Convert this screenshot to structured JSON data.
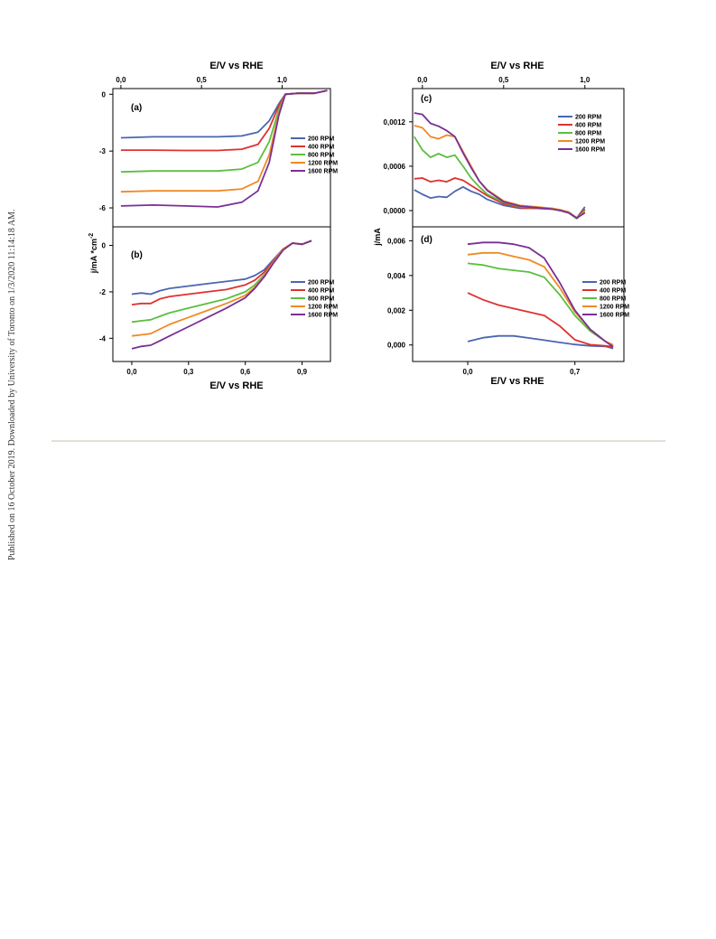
{
  "side_note": "Published on 16 October 2019. Downloaded by University of Toronto on 1/3/2020 11:14:18 AM.",
  "colors": {
    "200 RPM": "#4a66b0",
    "400 RPM": "#e03131",
    "800 RPM": "#5bbf3f",
    "1200 RPM": "#f08a24",
    "1600 RPM": "#7a2f96"
  },
  "chart_data": [
    {
      "panel": "(a)",
      "type": "line",
      "xlabel": "E/V vs RHE",
      "ylabel": "j/mA *cm-2",
      "x_ticks": [
        "0,0",
        "0,5",
        "1,0"
      ],
      "y_ticks": [
        "0",
        "-3",
        "-6"
      ],
      "xlim": [
        -0.05,
        1.3
      ],
      "ylim": [
        -7,
        0.3
      ],
      "legend": [
        "200 RPM",
        "400 RPM",
        "800 RPM",
        "1200 RPM",
        "1600 RPM"
      ],
      "series": [
        {
          "name": "200 RPM",
          "x": [
            0,
            0.2,
            0.4,
            0.6,
            0.75,
            0.85,
            0.92,
            0.98,
            1.02,
            1.1,
            1.2,
            1.28
          ],
          "y": [
            -2.3,
            -2.25,
            -2.25,
            -2.25,
            -2.2,
            -2.0,
            -1.4,
            -0.5,
            0,
            0.05,
            0.05,
            0.2
          ]
        },
        {
          "name": "400 RPM",
          "x": [
            0,
            0.2,
            0.4,
            0.6,
            0.75,
            0.85,
            0.92,
            0.98,
            1.02,
            1.1,
            1.2,
            1.28
          ],
          "y": [
            -2.95,
            -2.95,
            -2.97,
            -2.97,
            -2.9,
            -2.65,
            -1.8,
            -0.6,
            0,
            0.05,
            0.05,
            0.2
          ]
        },
        {
          "name": "800 RPM",
          "x": [
            0,
            0.2,
            0.4,
            0.6,
            0.75,
            0.85,
            0.92,
            0.98,
            1.02,
            1.1,
            1.2,
            1.28
          ],
          "y": [
            -4.1,
            -4.05,
            -4.05,
            -4.05,
            -3.95,
            -3.6,
            -2.5,
            -0.8,
            0,
            0.05,
            0.05,
            0.2
          ]
        },
        {
          "name": "1200 RPM",
          "x": [
            0,
            0.2,
            0.4,
            0.6,
            0.75,
            0.85,
            0.92,
            0.98,
            1.02,
            1.1,
            1.2,
            1.28
          ],
          "y": [
            -5.15,
            -5.1,
            -5.1,
            -5.1,
            -5.0,
            -4.6,
            -3.2,
            -1.0,
            0,
            0.05,
            0.05,
            0.2
          ]
        },
        {
          "name": "1600 RPM",
          "x": [
            0,
            0.2,
            0.4,
            0.6,
            0.75,
            0.85,
            0.92,
            0.98,
            1.02,
            1.1,
            1.2,
            1.28
          ],
          "y": [
            -5.9,
            -5.85,
            -5.9,
            -5.95,
            -5.7,
            -5.1,
            -3.6,
            -1.1,
            0,
            0.05,
            0.05,
            0.2
          ]
        }
      ]
    },
    {
      "panel": "(b)",
      "type": "line",
      "xlabel": "E/V vs RHE",
      "ylabel": "j/mA *cm-2",
      "x_ticks": [
        "0,0",
        "0,3",
        "0,6",
        "0,9"
      ],
      "y_ticks": [
        "0",
        "-2",
        "-4"
      ],
      "xlim": [
        -0.1,
        1.05
      ],
      "ylim": [
        -5,
        0.8
      ],
      "legend": [
        "200 RPM",
        "400 RPM",
        "800 RPM",
        "1200 RPM",
        "1600 RPM"
      ],
      "series": [
        {
          "name": "200 RPM",
          "x": [
            0,
            0.05,
            0.1,
            0.15,
            0.2,
            0.3,
            0.4,
            0.5,
            0.6,
            0.65,
            0.7,
            0.75,
            0.8,
            0.85,
            0.9,
            0.95
          ],
          "y": [
            -2.1,
            -2.05,
            -2.1,
            -1.95,
            -1.85,
            -1.75,
            -1.65,
            -1.55,
            -1.45,
            -1.3,
            -1.05,
            -0.6,
            -0.15,
            0.1,
            0.05,
            0.2
          ]
        },
        {
          "name": "400 RPM",
          "x": [
            0,
            0.05,
            0.1,
            0.15,
            0.2,
            0.3,
            0.4,
            0.5,
            0.6,
            0.65,
            0.7,
            0.75,
            0.8,
            0.85,
            0.9,
            0.95
          ],
          "y": [
            -2.55,
            -2.5,
            -2.5,
            -2.3,
            -2.2,
            -2.1,
            -2.0,
            -1.9,
            -1.7,
            -1.5,
            -1.15,
            -0.65,
            -0.15,
            0.1,
            0.05,
            0.2
          ]
        },
        {
          "name": "800 RPM",
          "x": [
            0,
            0.05,
            0.1,
            0.15,
            0.2,
            0.3,
            0.4,
            0.5,
            0.6,
            0.65,
            0.7,
            0.75,
            0.8,
            0.85,
            0.9,
            0.95
          ],
          "y": [
            -3.3,
            -3.25,
            -3.2,
            -3.05,
            -2.9,
            -2.7,
            -2.5,
            -2.3,
            -2.0,
            -1.7,
            -1.25,
            -0.7,
            -0.15,
            0.1,
            0.05,
            0.2
          ]
        },
        {
          "name": "1200 RPM",
          "x": [
            0,
            0.05,
            0.1,
            0.15,
            0.2,
            0.3,
            0.4,
            0.5,
            0.6,
            0.65,
            0.7,
            0.75,
            0.8,
            0.85,
            0.9,
            0.95
          ],
          "y": [
            -3.9,
            -3.85,
            -3.8,
            -3.6,
            -3.4,
            -3.1,
            -2.8,
            -2.5,
            -2.15,
            -1.8,
            -1.3,
            -0.7,
            -0.15,
            0.1,
            0.05,
            0.2
          ]
        },
        {
          "name": "1600 RPM",
          "x": [
            0,
            0.05,
            0.1,
            0.15,
            0.2,
            0.3,
            0.4,
            0.5,
            0.6,
            0.65,
            0.7,
            0.75,
            0.8,
            0.85,
            0.9,
            0.95
          ],
          "y": [
            -4.45,
            -4.35,
            -4.3,
            -4.1,
            -3.9,
            -3.5,
            -3.1,
            -2.7,
            -2.25,
            -1.85,
            -1.35,
            -0.75,
            -0.2,
            0.1,
            0.05,
            0.2
          ]
        }
      ]
    },
    {
      "panel": "(c)",
      "type": "line",
      "xlabel": "E/V vs RHE",
      "ylabel": "",
      "x_ticks": [
        "0,0",
        "0,5",
        "1,0"
      ],
      "y_ticks": [
        "0,0012",
        "0,0006",
        "0,0000"
      ],
      "xlim": [
        -0.06,
        1.24
      ],
      "ylim": [
        -0.00022,
        0.00165
      ],
      "legend": [
        "200 RPM",
        "400 RPM",
        "800 RPM",
        "1200 RPM",
        "1600 RPM"
      ],
      "series": [
        {
          "name": "200 RPM",
          "x": [
            -0.05,
            0.0,
            0.05,
            0.1,
            0.15,
            0.2,
            0.25,
            0.3,
            0.35,
            0.4,
            0.5,
            0.6,
            0.7,
            0.8,
            0.85,
            0.9,
            0.95,
            1.0
          ],
          "y": [
            0.00028,
            0.00022,
            0.00017,
            0.00019,
            0.00018,
            0.00026,
            0.00032,
            0.00026,
            0.00022,
            0.00015,
            7e-05,
            3e-05,
            3e-05,
            2e-05,
            1e-05,
            -2e-05,
            -0.0001,
            5e-05
          ]
        },
        {
          "name": "400 RPM",
          "x": [
            -0.05,
            0.0,
            0.05,
            0.1,
            0.15,
            0.2,
            0.25,
            0.3,
            0.35,
            0.4,
            0.5,
            0.6,
            0.7,
            0.8,
            0.85,
            0.9,
            0.95,
            1.0
          ],
          "y": [
            0.00043,
            0.00044,
            0.00039,
            0.00041,
            0.00039,
            0.00044,
            0.00041,
            0.00034,
            0.00027,
            0.0002,
            9e-05,
            4e-05,
            3e-05,
            2e-05,
            0.0,
            -3e-05,
            -0.0001,
            2e-05
          ]
        },
        {
          "name": "800 RPM",
          "x": [
            -0.05,
            0.0,
            0.05,
            0.1,
            0.15,
            0.2,
            0.25,
            0.3,
            0.35,
            0.4,
            0.5,
            0.6,
            0.7,
            0.8,
            0.85,
            0.9,
            0.95,
            1.0
          ],
          "y": [
            0.001,
            0.00082,
            0.00072,
            0.00077,
            0.00072,
            0.00075,
            0.0006,
            0.00044,
            0.00032,
            0.00022,
            0.00011,
            5e-05,
            4e-05,
            2e-05,
            0.0,
            -3e-05,
            -0.00011,
            0.0
          ]
        },
        {
          "name": "1200 RPM",
          "x": [
            -0.05,
            0.0,
            0.05,
            0.1,
            0.15,
            0.2,
            0.25,
            0.3,
            0.35,
            0.4,
            0.5,
            0.6,
            0.7,
            0.8,
            0.85,
            0.9,
            0.95,
            1.0
          ],
          "y": [
            0.00115,
            0.00112,
            0.001,
            0.00097,
            0.00102,
            0.001,
            0.0008,
            0.0006,
            0.0004,
            0.00028,
            0.00013,
            7e-05,
            5e-05,
            3e-05,
            1e-05,
            -2e-05,
            -0.0001,
            -2e-05
          ]
        },
        {
          "name": "1600 RPM",
          "x": [
            -0.05,
            0.0,
            0.05,
            0.1,
            0.15,
            0.2,
            0.25,
            0.3,
            0.35,
            0.4,
            0.5,
            0.6,
            0.7,
            0.8,
            0.85,
            0.9,
            0.95,
            1.0
          ],
          "y": [
            0.00132,
            0.0013,
            0.00118,
            0.00114,
            0.00108,
            0.001,
            0.00078,
            0.00058,
            0.0004,
            0.00027,
            0.00012,
            6e-05,
            4e-05,
            2e-05,
            0.0,
            -3e-05,
            -0.0001,
            -3e-05
          ]
        }
      ]
    },
    {
      "panel": "(d)",
      "type": "line",
      "xlabel": "E/V vs RHE",
      "ylabel": "j/mA",
      "x_ticks": [
        "0,0",
        "0,7"
      ],
      "y_ticks": [
        "0,006",
        "0,004",
        "0,002",
        "0,000"
      ],
      "xlim": [
        -0.36,
        1.02
      ],
      "ylim": [
        -0.00095,
        0.0068
      ],
      "legend": [
        "200 RPM",
        "400 RPM",
        "800 RPM",
        "1200 RPM",
        "1600 RPM"
      ],
      "series": [
        {
          "name": "200 RPM",
          "x": [
            0,
            0.1,
            0.2,
            0.3,
            0.4,
            0.5,
            0.6,
            0.7,
            0.8,
            0.9,
            0.95
          ],
          "y": [
            0.0002,
            0.00042,
            0.00052,
            0.00052,
            0.0004,
            0.00028,
            0.00015,
            3e-05,
            -5e-05,
            -8e-05,
            -0.0002
          ]
        },
        {
          "name": "400 RPM",
          "x": [
            0,
            0.1,
            0.2,
            0.3,
            0.4,
            0.5,
            0.6,
            0.7,
            0.8,
            0.9,
            0.95
          ],
          "y": [
            0.003,
            0.0026,
            0.0023,
            0.0021,
            0.0019,
            0.0017,
            0.0011,
            0.0003,
            2e-05,
            -5e-05,
            -0.0001
          ]
        },
        {
          "name": "800 RPM",
          "x": [
            0,
            0.1,
            0.2,
            0.3,
            0.4,
            0.5,
            0.6,
            0.7,
            0.8,
            0.9,
            0.95
          ],
          "y": [
            0.0047,
            0.0046,
            0.0044,
            0.0043,
            0.0042,
            0.0039,
            0.0029,
            0.0017,
            0.0008,
            0.0002,
            0.0
          ]
        },
        {
          "name": "1200 RPM",
          "x": [
            0,
            0.1,
            0.2,
            0.3,
            0.4,
            0.5,
            0.6,
            0.7,
            0.8,
            0.9,
            0.95
          ],
          "y": [
            0.0052,
            0.0053,
            0.0053,
            0.0051,
            0.0049,
            0.0045,
            0.0033,
            0.0019,
            0.0009,
            0.0002,
            0.0
          ]
        },
        {
          "name": "1600 RPM",
          "x": [
            0,
            0.1,
            0.2,
            0.3,
            0.4,
            0.5,
            0.6,
            0.7,
            0.8,
            0.9,
            0.95
          ],
          "y": [
            0.0058,
            0.0059,
            0.0059,
            0.0058,
            0.0056,
            0.005,
            0.0036,
            0.002,
            0.0009,
            0.0002,
            -0.0001
          ]
        }
      ]
    }
  ]
}
